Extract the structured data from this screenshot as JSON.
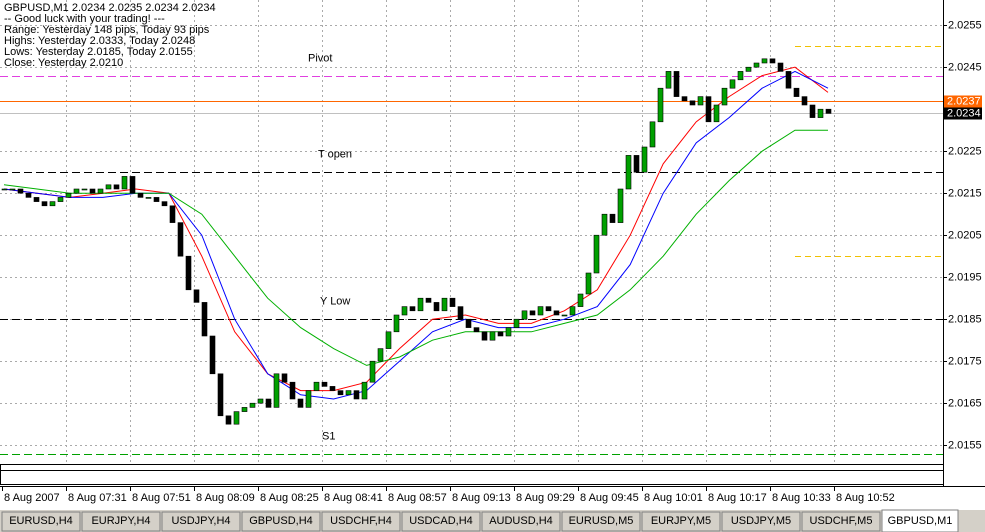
{
  "header": {
    "lines": [
      "GBPUSD,M1  2.0234 2.0235 2.0234 2.0234",
      "-- Good luck with your trading! ---",
      "Range: Yesterday 148 pips, Today 93 pips",
      "Highs: Yesterday 2.0333, Today 2.0248",
      "Lows:  Yesterday 2.0185, Today 2.0155",
      "Close: Yesterday 2.0210"
    ]
  },
  "chart_data": {
    "type": "candlestick",
    "closes": [
      2.0216,
      2.0216,
      2.0215,
      2.0214,
      2.0213,
      2.0212,
      2.0213,
      2.0214,
      2.0215,
      2.0216,
      2.0216,
      2.0215,
      2.0216,
      2.0217,
      2.0216,
      2.0219,
      2.0215,
      2.0214,
      2.0214,
      2.0213,
      2.0212,
      2.0208,
      2.02,
      2.0192,
      2.0189,
      2.0181,
      2.0172,
      2.0162,
      2.016,
      2.0163,
      2.0164,
      2.0165,
      2.0166,
      2.0164,
      2.0172,
      2.017,
      2.0166,
      2.0164,
      2.0168,
      2.017,
      2.0169,
      2.0168,
      2.0167,
      2.0168,
      2.0166,
      2.017,
      2.0175,
      2.0178,
      2.0182,
      2.0186,
      2.0188,
      2.0187,
      2.019,
      2.0189,
      2.0187,
      2.019,
      2.0188,
      2.0185,
      2.0183,
      2.0182,
      2.018,
      2.0182,
      2.0181,
      2.0183,
      2.0185,
      2.0187,
      2.0186,
      2.0188,
      2.0187,
      2.0186,
      2.0186,
      2.0188,
      2.0191,
      2.0196,
      2.0205,
      2.021,
      2.0208,
      2.0216,
      2.0224,
      2.022,
      2.0226,
      2.0232,
      2.024,
      2.0244,
      2.0238,
      2.0237,
      2.0236,
      2.0238,
      2.0232,
      2.0236,
      2.024,
      2.0242,
      2.0244,
      2.0245,
      2.0246,
      2.0247,
      2.0246,
      2.0244,
      2.024,
      2.0238,
      2.0236,
      2.0233,
      2.0235,
      2.0234
    ],
    "up_color": "#00a000",
    "down_color": "#000000",
    "moving_averages": [
      {
        "color": "#ff0000",
        "values": [
          2.0216,
          2.0215,
          2.0214,
          2.0215,
          2.0216,
          2.0215,
          2.02,
          2.0182,
          2.0172,
          2.0168,
          2.0168,
          2.017,
          2.0178,
          2.0185,
          2.0186,
          2.0184,
          2.0184,
          2.0187,
          2.0192,
          2.0205,
          2.0222,
          2.0232,
          2.0238,
          2.0243,
          2.0245,
          2.0239
        ]
      },
      {
        "color": "#0000ff",
        "values": [
          2.0216,
          2.0215,
          2.0214,
          2.0214,
          2.0215,
          2.0215,
          2.0205,
          2.0185,
          2.0172,
          2.0167,
          2.0166,
          2.0168,
          2.0175,
          2.0182,
          2.0185,
          2.0183,
          2.0183,
          2.0185,
          2.0188,
          2.0198,
          2.0215,
          2.0227,
          2.0233,
          2.024,
          2.0244,
          2.024
        ]
      },
      {
        "color": "#00b000",
        "values": [
          2.0217,
          2.0216,
          2.0215,
          2.0215,
          2.0215,
          2.0215,
          2.021,
          2.02,
          2.019,
          2.0183,
          2.0178,
          2.0174,
          2.0176,
          2.018,
          2.0182,
          2.0182,
          2.0182,
          2.0184,
          2.0186,
          2.0192,
          2.02,
          2.021,
          2.0218,
          2.0225,
          2.023,
          2.023
        ]
      }
    ],
    "ylim": [
      2.0151,
      2.0261
    ],
    "yticks": [
      2.0255,
      2.0245,
      2.0225,
      2.0215,
      2.0205,
      2.0195,
      2.0185,
      2.0175,
      2.0165,
      2.0155
    ],
    "x_labels": [
      "8 Aug 2007",
      "8 Aug 07:31",
      "8 Aug 07:51",
      "8 Aug 08:09",
      "8 Aug 08:25",
      "8 Aug 08:41",
      "8 Aug 08:57",
      "8 Aug 09:13",
      "8 Aug 09:29",
      "8 Aug 09:45",
      "8 Aug 10:01",
      "8 Aug 10:17",
      "8 Aug 10:33",
      "8 Aug 10:52"
    ],
    "levels": [
      {
        "name": "Pivot",
        "value": 2.0243,
        "color": "#e040e0"
      },
      {
        "name": "T open",
        "value": 2.022,
        "color": "#000000"
      },
      {
        "name": "Y Low",
        "value": 2.0185,
        "color": "#000000"
      },
      {
        "name": "S1",
        "value": 2.0153,
        "color": "#00a000"
      }
    ],
    "other_lines": [
      {
        "value": 2.025,
        "color": "#f0c000"
      },
      {
        "value": 2.02,
        "color": "#f0c000"
      }
    ],
    "price_labels": [
      {
        "value": 2.0237,
        "color": "#ff6600"
      },
      {
        "value": 2.0234,
        "color": "#000000"
      }
    ],
    "grid": true
  },
  "tabs": {
    "items": [
      "EURUSD,H4",
      "EURJPY,H4",
      "USDJPY,H4",
      "GBPUSD,H4",
      "USDCHF,H4",
      "USDCAD,H4",
      "AUDUSD,H4",
      "EURUSD,M5",
      "EURJPY,M5",
      "USDJPY,M5",
      "USDCHF,M5",
      "GBPUSD,M1"
    ],
    "active": 11
  }
}
